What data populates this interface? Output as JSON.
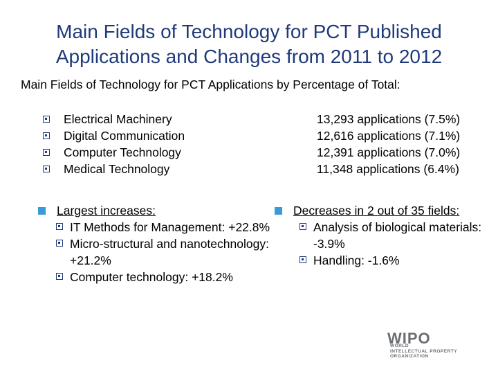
{
  "title": "Main Fields of Technology for PCT Published Applications and Changes from 2011 to 2012",
  "subtitle": "Main Fields of Technology for PCT Applications by Percentage of Total:",
  "fields": [
    {
      "name": "Electrical Machinery",
      "count": "13,293 applications (7.5%)"
    },
    {
      "name": "Digital Communication",
      "count": "12,616 applications (7.1%)"
    },
    {
      "name": "Computer Technology",
      "count": "12,391 applications (7.0%)"
    },
    {
      "name": "Medical Technology",
      "count": "11,348 applications (6.4%)"
    }
  ],
  "increases": {
    "heading": "Largest increases:",
    "items": [
      "IT Methods for Management: +22.8%",
      "Micro-structural and nanotechnology: +21.2%",
      "Computer technology: +18.2%"
    ]
  },
  "decreases": {
    "heading": "Decreases in 2 out of 35 fields:",
    "items": [
      "Analysis of biological materials: -3.9%",
      "Handling: -1.6%"
    ]
  },
  "logo": {
    "word": "WIPO",
    "line1": "WORLD",
    "line2": "INTELLECTUAL PROPERTY",
    "line3": "ORGANIZATION"
  }
}
